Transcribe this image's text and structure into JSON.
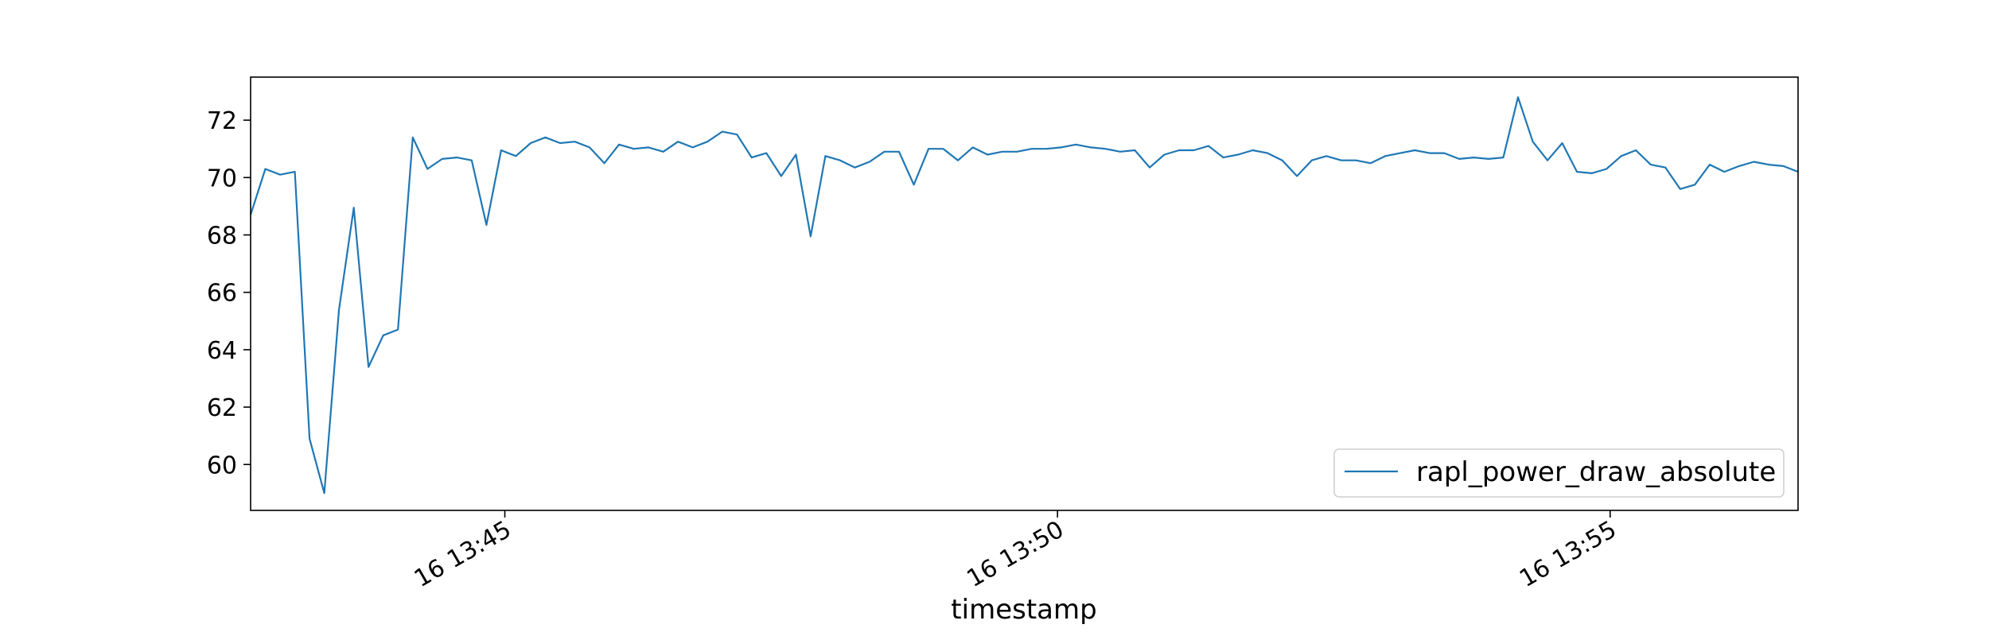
{
  "chart_data": {
    "type": "line",
    "title": "",
    "xlabel": "timestamp",
    "ylabel": "",
    "x_start": "13:42:42",
    "x_end": "13:56:42",
    "xlim": [
      "13:42:42",
      "13:56:42"
    ],
    "ylim": [
      58.4,
      73.5
    ],
    "yticks": [
      60,
      62,
      64,
      66,
      68,
      70,
      72
    ],
    "xticks": [
      {
        "time": "13:45:00",
        "label": "16 13:45"
      },
      {
        "time": "13:50:00",
        "label": "16 13:50"
      },
      {
        "time": "13:55:00",
        "label": "16 13:55"
      }
    ],
    "grid": false,
    "legend_position": "lower right",
    "series": [
      {
        "name": "rapl_power_draw_absolute",
        "color": "#1f77b4",
        "x": [
          "13:42:42",
          "13:42:50",
          "13:42:58",
          "13:43:06",
          "13:43:14",
          "13:43:22",
          "13:43:30",
          "13:43:38",
          "13:43:46",
          "13:43:54",
          "13:44:02",
          "13:44:10",
          "13:44:18",
          "13:44:26",
          "13:44:34",
          "13:44:42",
          "13:44:50",
          "13:44:58",
          "13:45:06",
          "13:45:14",
          "13:45:22",
          "13:45:30",
          "13:45:38",
          "13:45:46",
          "13:45:54",
          "13:46:02",
          "13:46:10",
          "13:46:18",
          "13:46:26",
          "13:46:34",
          "13:46:42",
          "13:46:50",
          "13:46:58",
          "13:47:06",
          "13:47:14",
          "13:47:22",
          "13:47:30",
          "13:47:38",
          "13:47:46",
          "13:47:54",
          "13:48:02",
          "13:48:10",
          "13:48:18",
          "13:48:26",
          "13:48:34",
          "13:48:42",
          "13:48:50",
          "13:48:58",
          "13:49:06",
          "13:49:14",
          "13:49:22",
          "13:49:30",
          "13:49:38",
          "13:49:46",
          "13:49:54",
          "13:50:02",
          "13:50:10",
          "13:50:18",
          "13:50:26",
          "13:50:34",
          "13:50:42",
          "13:50:50",
          "13:50:58",
          "13:51:06",
          "13:51:14",
          "13:51:22",
          "13:51:30",
          "13:51:38",
          "13:51:46",
          "13:51:54",
          "13:52:02",
          "13:52:10",
          "13:52:18",
          "13:52:26",
          "13:52:34",
          "13:52:42",
          "13:52:50",
          "13:52:58",
          "13:53:06",
          "13:53:14",
          "13:53:22",
          "13:53:30",
          "13:53:38",
          "13:53:46",
          "13:53:54",
          "13:54:02",
          "13:54:10",
          "13:54:18",
          "13:54:26",
          "13:54:34",
          "13:54:42",
          "13:54:50",
          "13:54:58",
          "13:55:06",
          "13:55:14",
          "13:55:22",
          "13:55:30",
          "13:55:38",
          "13:55:46",
          "13:55:54",
          "13:56:02",
          "13:56:10",
          "13:56:18",
          "13:56:26",
          "13:56:34",
          "13:56:42"
        ],
        "values": [
          68.7,
          70.3,
          70.1,
          70.2,
          60.9,
          59.0,
          65.4,
          68.95,
          63.4,
          64.5,
          64.7,
          71.4,
          70.3,
          70.65,
          70.7,
          70.6,
          68.35,
          70.95,
          70.75,
          71.2,
          71.4,
          71.2,
          71.25,
          71.05,
          70.5,
          71.15,
          71.0,
          71.05,
          70.9,
          71.25,
          71.05,
          71.25,
          71.6,
          71.5,
          70.7,
          70.85,
          70.05,
          70.8,
          67.95,
          70.75,
          70.6,
          70.35,
          70.55,
          70.9,
          70.9,
          69.75,
          71.0,
          71.0,
          70.6,
          71.05,
          70.8,
          70.9,
          70.9,
          71.0,
          71.0,
          71.05,
          71.15,
          71.05,
          71.0,
          70.9,
          70.95,
          70.35,
          70.8,
          70.95,
          70.95,
          71.1,
          70.7,
          70.8,
          70.95,
          70.85,
          70.6,
          70.05,
          70.6,
          70.75,
          70.6,
          70.6,
          70.5,
          70.75,
          70.85,
          70.95,
          70.85,
          70.85,
          70.65,
          70.7,
          70.65,
          70.7,
          72.8,
          71.25,
          70.6,
          71.2,
          70.2,
          70.15,
          70.3,
          70.75,
          70.95,
          70.45,
          70.35,
          69.6,
          69.75,
          70.45,
          70.2,
          70.4,
          70.55,
          70.45,
          70.4,
          70.2
        ]
      }
    ]
  }
}
